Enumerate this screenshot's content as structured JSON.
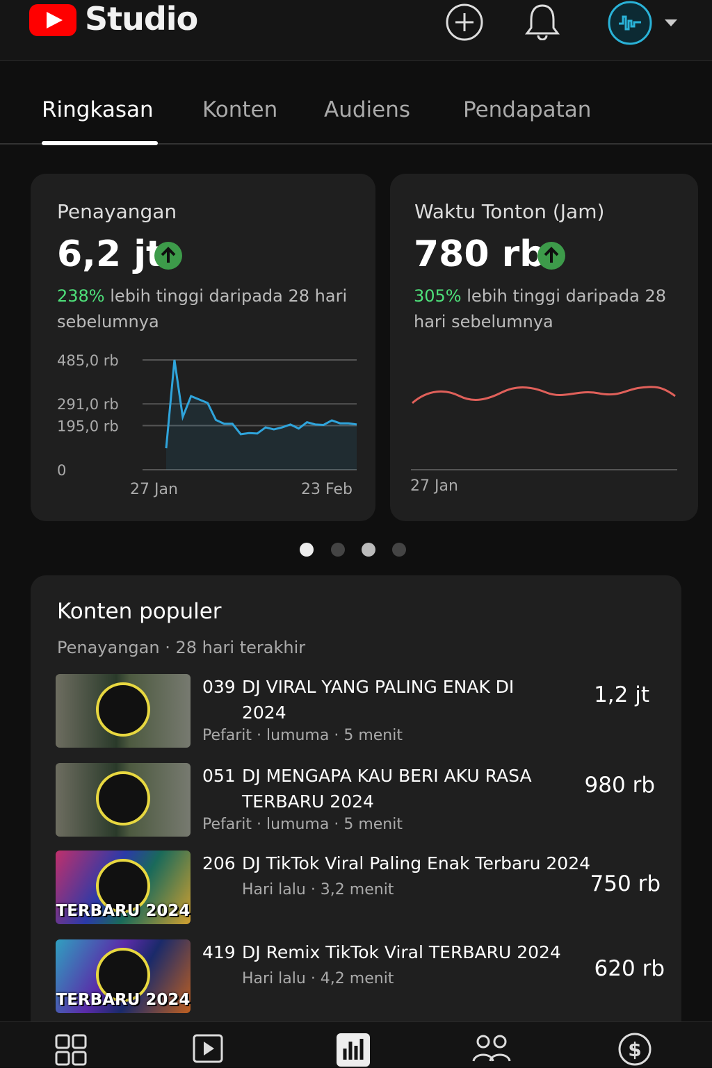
{
  "header": {
    "logo": "Studio"
  },
  "tabs": [
    "Ringkasan",
    "Konten",
    "Audiens",
    "Pendapatan"
  ],
  "cards": [
    {
      "title": "Penayangan",
      "value": "6,2 jt",
      "change": "238%",
      "description": "lebih tinggi daripada 28 hari sebelumnya",
      "chart": {
        "type": "line",
        "x_labels": [
          "27 Jan",
          "23 Feb"
        ],
        "values": [
          95,
          485,
          233,
          325,
          310,
          295,
          220,
          203,
          203,
          157,
          162,
          160,
          187,
          178,
          187,
          200,
          182,
          210,
          200,
          198,
          218,
          205,
          205,
          200
        ],
        "color": "#2fa4db",
        "ylim": [
          0,
          485
        ],
        "yticks": [
          {
            "value": 485,
            "label": "485,0 rb"
          },
          {
            "value": 291,
            "label": "291,0 rb"
          },
          {
            "value": 195,
            "label": "195,0 rb"
          },
          0
        ],
        "grid": true
      }
    },
    {
      "title": "Waktu Tonton (Jam)",
      "value": "780 rb",
      "change": "305%",
      "description": "lebih tinggi  daripada 28 hari sebelumnya",
      "chart": {
        "x_labels": [
          "27 Jan"
        ]
      }
    }
  ],
  "popular": {
    "title": "Konten populer",
    "subtitle": "Penayangan · 28 hari terakhir",
    "items": [
      {
        "number": "039",
        "title": "DJ VIRAL YANG PALING ENAK DI 2024",
        "meta": "Pefarit · lumuma · 5 menit",
        "views": "1,2 jt"
      },
      {
        "number": "051",
        "title": "DJ MENGAPA KAU BERI AKU RASA TERBARU 2024",
        "meta": "Pefarit · lumuma · 5 menit",
        "views": "980 rb"
      },
      {
        "number": "206",
        "title": "DJ TikTok Viral Paling Enak Terbaru 2024",
        "meta": "Hari lalu · 3,2 menit",
        "views": "750 rb",
        "thumb_text": "TERBARU 2024"
      },
      {
        "number": "419",
        "title": "DJ Remix TikTok Viral TERBARU 2024",
        "meta": "Hari lalu · 4,2 menit",
        "views": "620 rb",
        "thumb_text": "TERBARU 2024"
      }
    ]
  }
}
